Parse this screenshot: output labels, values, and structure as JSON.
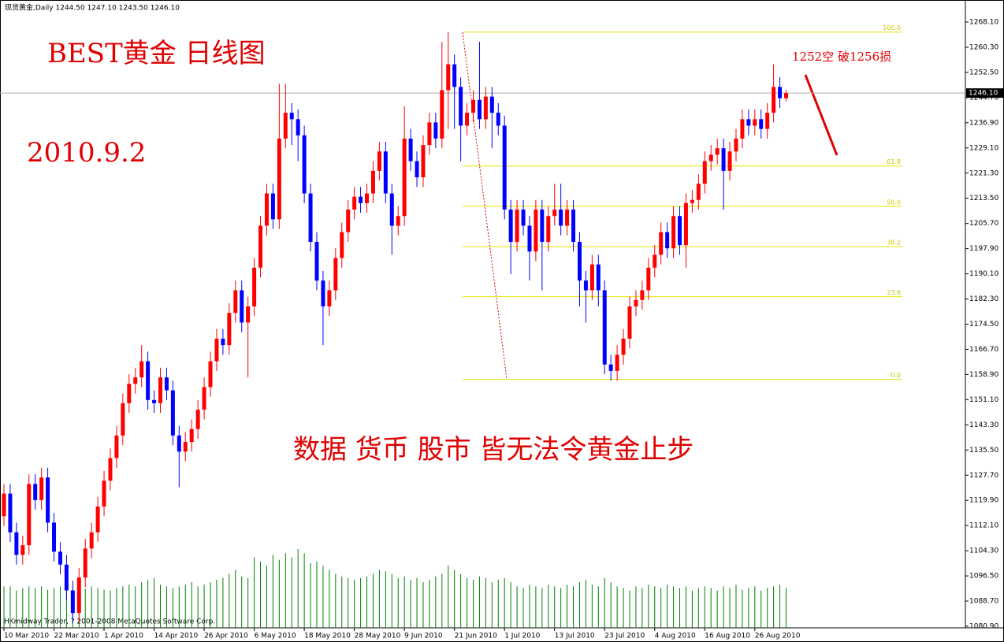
{
  "chart_data": {
    "type": "candlestick",
    "header": "现货黄金,Daily  1244.50 1247.10 1243.50 1246.10",
    "title": "BEST黄金  日线图",
    "date": "2010.9.2",
    "note": "1252空  破1256损",
    "slogan": "数据  货币  股市  皆无法令黄金止步",
    "copyright": "HKmidway Trader, ? 2001-2008 MetaQuotes Software Corp.",
    "current_price": {
      "value": 1246.1,
      "label": "1246.10"
    },
    "up_color": "#ff0000",
    "down_color": "#0000ff",
    "volume_color": "#008000",
    "fib_color": "#e6e600",
    "categories": [
      "10 Mar 2010",
      null,
      null,
      null,
      null,
      null,
      null,
      null,
      "22 Mar 2010",
      null,
      null,
      null,
      null,
      null,
      null,
      null,
      "1 Apr 2010",
      null,
      null,
      null,
      null,
      null,
      null,
      null,
      "14 Apr 2010",
      null,
      null,
      null,
      null,
      null,
      null,
      null,
      "26 Apr 2010",
      null,
      null,
      null,
      null,
      null,
      null,
      null,
      "6 May 2010",
      null,
      null,
      null,
      null,
      null,
      null,
      null,
      "18 May 2010",
      null,
      null,
      null,
      null,
      null,
      null,
      null,
      "28 May 2010",
      null,
      null,
      null,
      null,
      null,
      null,
      null,
      "9 Jun 2010",
      null,
      null,
      null,
      null,
      null,
      null,
      null,
      "21 Jun 2010",
      null,
      null,
      null,
      null,
      null,
      null,
      null,
      "1 Jul 2010",
      null,
      null,
      null,
      null,
      null,
      null,
      null,
      "13 Jul 2010",
      null,
      null,
      null,
      null,
      null,
      null,
      null,
      "23 Jul 2010",
      null,
      null,
      null,
      null,
      null,
      null,
      null,
      "4 Aug 2010",
      null,
      null,
      null,
      null,
      null,
      null,
      null,
      "16 Aug 2010",
      null,
      null,
      null,
      null,
      null,
      null,
      null,
      "26 Aug 2010",
      null,
      null,
      null,
      null,
      null
    ],
    "open": [
      1115,
      1122,
      1110,
      1103,
      1106,
      1125,
      1120,
      1127,
      1113,
      1104,
      1100,
      1092,
      1085,
      1096,
      1105,
      1110,
      1118,
      1126,
      1133,
      1140,
      1150,
      1156,
      1158,
      1163,
      1151,
      1150,
      1158,
      1154,
      1140,
      1135,
      1138,
      1142,
      1148,
      1155,
      1163,
      1170,
      1168,
      1178,
      1185,
      1175,
      1180,
      1192,
      1205,
      1215,
      1207,
      1232,
      1240,
      1238,
      1233,
      1215,
      1200,
      1188,
      1180,
      1185,
      1195,
      1203,
      1210,
      1214,
      1212,
      1215,
      1222,
      1228,
      1215,
      1205,
      1208,
      1232,
      1225,
      1220,
      1230,
      1237,
      1232,
      1247,
      1255,
      1248,
      1236,
      1240,
      1244,
      1238,
      1245,
      1240,
      1236,
      1210,
      1200,
      1210,
      1205,
      1197,
      1210,
      1200,
      1208,
      1210,
      1205,
      1210,
      1200,
      1188,
      1185,
      1193,
      1185,
      1162,
      1160,
      1165,
      1170,
      1180,
      1182,
      1185,
      1192,
      1196,
      1203,
      1198,
      1208,
      1199,
      1212,
      1213,
      1218,
      1225,
      1227,
      1229,
      1222,
      1228,
      1232,
      1238,
      1236,
      1238,
      1235,
      1240,
      1248,
      1244.5
    ],
    "high": [
      1125,
      1125,
      1113,
      1109,
      1128,
      1128,
      1130,
      1130,
      1116,
      1107,
      1103,
      1095,
      1099,
      1108,
      1113,
      1121,
      1129,
      1136,
      1143,
      1153,
      1159,
      1161,
      1168,
      1166,
      1154,
      1161,
      1161,
      1157,
      1143,
      1141,
      1145,
      1151,
      1158,
      1166,
      1173,
      1173,
      1181,
      1188,
      1188,
      1183,
      1195,
      1208,
      1218,
      1218,
      1249,
      1249,
      1243,
      1241,
      1236,
      1218,
      1203,
      1191,
      1188,
      1198,
      1206,
      1213,
      1217,
      1217,
      1218,
      1225,
      1231,
      1231,
      1218,
      1211,
      1242,
      1235,
      1228,
      1233,
      1240,
      1240,
      1262,
      1265,
      1258,
      1251,
      1243,
      1247,
      1262,
      1248,
      1248,
      1243,
      1239,
      1213,
      1213,
      1213,
      1208,
      1213,
      1213,
      1211,
      1218,
      1218,
      1213,
      1213,
      1203,
      1191,
      1196,
      1196,
      1188,
      1165,
      1168,
      1173,
      1183,
      1185,
      1188,
      1195,
      1199,
      1206,
      1206,
      1211,
      1211,
      1215,
      1216,
      1221,
      1228,
      1230,
      1232,
      1232,
      1231,
      1235,
      1241,
      1241,
      1241,
      1241,
      1243,
      1255,
      1251,
      1247.1
    ],
    "low": [
      1112,
      1107,
      1100,
      1100,
      1103,
      1117,
      1117,
      1110,
      1101,
      1097,
      1089,
      1082,
      1082,
      1093,
      1102,
      1107,
      1115,
      1123,
      1130,
      1137,
      1147,
      1153,
      1155,
      1148,
      1147,
      1147,
      1151,
      1137,
      1124,
      1132,
      1135,
      1139,
      1145,
      1152,
      1160,
      1165,
      1165,
      1175,
      1172,
      1158,
      1177,
      1189,
      1202,
      1204,
      1204,
      1229,
      1230,
      1225,
      1212,
      1197,
      1185,
      1168,
      1177,
      1182,
      1192,
      1200,
      1207,
      1209,
      1209,
      1212,
      1219,
      1212,
      1196,
      1202,
      1205,
      1222,
      1217,
      1217,
      1227,
      1229,
      1229,
      1235,
      1235,
      1225,
      1233,
      1237,
      1235,
      1235,
      1229,
      1233,
      1207,
      1190,
      1197,
      1202,
      1188,
      1194,
      1185,
      1197,
      1205,
      1202,
      1202,
      1197,
      1180,
      1175,
      1182,
      1180,
      1159,
      1157,
      1157,
      1162,
      1167,
      1177,
      1179,
      1182,
      1189,
      1193,
      1195,
      1195,
      1196,
      1192,
      1209,
      1210,
      1215,
      1222,
      1224,
      1210,
      1219,
      1225,
      1229,
      1233,
      1233,
      1232,
      1232,
      1237,
      1241.5,
      1243.5
    ],
    "close": [
      1122,
      1110,
      1103,
      1106,
      1125,
      1120,
      1127,
      1113,
      1104,
      1100,
      1092,
      1085,
      1096,
      1105,
      1110,
      1118,
      1126,
      1133,
      1140,
      1150,
      1156,
      1158,
      1163,
      1151,
      1150,
      1158,
      1154,
      1140,
      1135,
      1138,
      1142,
      1148,
      1155,
      1163,
      1170,
      1168,
      1178,
      1185,
      1175,
      1180,
      1192,
      1205,
      1215,
      1207,
      1232,
      1240,
      1238,
      1233,
      1215,
      1200,
      1188,
      1180,
      1185,
      1195,
      1203,
      1210,
      1214,
      1212,
      1215,
      1222,
      1228,
      1215,
      1205,
      1208,
      1232,
      1225,
      1220,
      1230,
      1237,
      1232,
      1247,
      1255,
      1248,
      1236,
      1240,
      1244,
      1238,
      1245,
      1240,
      1236,
      1210,
      1200,
      1210,
      1205,
      1197,
      1210,
      1200,
      1208,
      1210,
      1205,
      1210,
      1200,
      1188,
      1185,
      1193,
      1185,
      1162,
      1160,
      1165,
      1170,
      1180,
      1182,
      1185,
      1192,
      1196,
      1203,
      1198,
      1208,
      1199,
      1212,
      1213,
      1218,
      1225,
      1227,
      1229,
      1222,
      1228,
      1232,
      1238,
      1236,
      1238,
      1235,
      1240,
      1248,
      1244.5,
      1246.1
    ],
    "volume": [
      50,
      50,
      45,
      48,
      50,
      48,
      50,
      46,
      48,
      50,
      52,
      48,
      45,
      47,
      50,
      48,
      46,
      45,
      48,
      50,
      52,
      50,
      55,
      58,
      60,
      52,
      50,
      48,
      50,
      52,
      55,
      50,
      52,
      55,
      58,
      60,
      65,
      70,
      62,
      60,
      85,
      80,
      75,
      88,
      82,
      90,
      85,
      95,
      90,
      78,
      80,
      75,
      70,
      65,
      62,
      60,
      58,
      60,
      62,
      65,
      70,
      68,
      65,
      60,
      62,
      58,
      60,
      55,
      58,
      62,
      65,
      75,
      70,
      65,
      60,
      58,
      62,
      60,
      55,
      58,
      60,
      55,
      50,
      48,
      52,
      50,
      48,
      52,
      50,
      48,
      52,
      50,
      55,
      58,
      52,
      50,
      60,
      55,
      50,
      48,
      45,
      50,
      48,
      52,
      50,
      48,
      52,
      50,
      48,
      50,
      45,
      48,
      50,
      48,
      45,
      50,
      48,
      52,
      46,
      48,
      50,
      45,
      48,
      50,
      52,
      48
    ],
    "ylim": [
      1080.9,
      1268.1
    ],
    "yticks": [
      {
        "value": 1268.1,
        "label": "1268.10"
      },
      {
        "value": 1260.3,
        "label": "1260.30"
      },
      {
        "value": 1252.5,
        "label": "1252.50"
      },
      {
        "value": 1244.7,
        "label": "1244.70"
      },
      {
        "value": 1236.9,
        "label": "1236.90"
      },
      {
        "value": 1229.1,
        "label": "1229.10"
      },
      {
        "value": 1221.3,
        "label": "1221.30"
      },
      {
        "value": 1213.5,
        "label": "1213.50"
      },
      {
        "value": 1205.7,
        "label": "1205.70"
      },
      {
        "value": 1197.9,
        "label": "1197.90"
      },
      {
        "value": 1190.1,
        "label": "1190.10"
      },
      {
        "value": 1182.3,
        "label": "1182.30"
      },
      {
        "value": 1174.5,
        "label": "1174.50"
      },
      {
        "value": 1166.7,
        "label": "1166.70"
      },
      {
        "value": 1158.9,
        "label": "1158.90"
      },
      {
        "value": 1151.1,
        "label": "1151.10"
      },
      {
        "value": 1143.3,
        "label": "1143.30"
      },
      {
        "value": 1135.5,
        "label": "1135.50"
      },
      {
        "value": 1127.7,
        "label": "1127.70"
      },
      {
        "value": 1119.9,
        "label": "1119.90"
      },
      {
        "value": 1112.1,
        "label": "1112.10"
      },
      {
        "value": 1104.3,
        "label": "1104.30"
      },
      {
        "value": 1096.5,
        "label": "1096.50"
      },
      {
        "value": 1088.7,
        "label": "1088.70"
      },
      {
        "value": 1080.9,
        "label": "1080.90"
      }
    ],
    "fibonacci": [
      {
        "label": "100.0",
        "price": 1265
      },
      {
        "label": "61.8",
        "price": 1223.5
      },
      {
        "label": "50.0",
        "price": 1211
      },
      {
        "label": "38.2",
        "price": 1198.5
      },
      {
        "label": "23.6",
        "price": 1183
      },
      {
        "label": "0.0",
        "price": 1157.4
      }
    ]
  }
}
